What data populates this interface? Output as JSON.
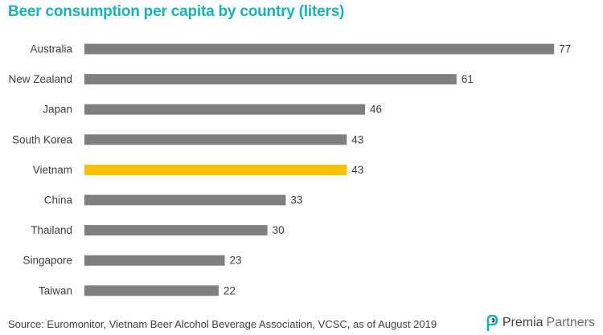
{
  "colors": {
    "title": "#1ab0b5",
    "bar_default": "#7f7f7f",
    "bar_highlight": "#ffc000",
    "text": "#404040"
  },
  "chart_data": {
    "type": "bar",
    "orientation": "horizontal",
    "title": "Beer consumption per capita by country (liters)",
    "categories": [
      "Australia",
      "New Zealand",
      "Japan",
      "South Korea",
      "Vietnam",
      "China",
      "Thailand",
      "Singapore",
      "Taiwan"
    ],
    "values": [
      77,
      61,
      46,
      43,
      43,
      33,
      30,
      23,
      22
    ],
    "highlight": "Vietnam",
    "xlim": [
      0,
      80
    ],
    "grid": false,
    "legend": "none",
    "data_labels": true
  },
  "footer": {
    "source": "Source: Euromonitor, Vietnam Beer Alcohol Beverage Association, VCSC, as of August 2019"
  },
  "brand": {
    "logo_icon": "premia-logo-icon",
    "name_part1": "Premia",
    "name_part2": "Partners"
  }
}
